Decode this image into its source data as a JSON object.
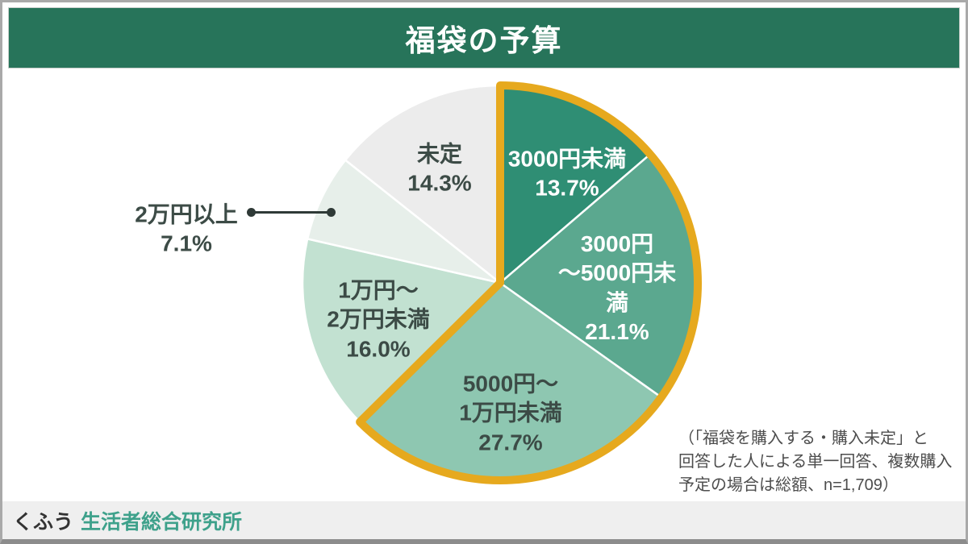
{
  "title": "福袋の予算",
  "chart_data": {
    "type": "pie",
    "title": "福袋の予算",
    "labels": [
      "3000円未満",
      "3000円～5000円未満",
      "5000円～1万円未満",
      "1万円～2万円未満",
      "2万円以上",
      "未定"
    ],
    "values": [
      13.7,
      21.1,
      27.7,
      16.0,
      7.1,
      14.3
    ],
    "unit": "%",
    "colors": [
      "#2f8e74",
      "#5ba88f",
      "#8ec7b1",
      "#c2e1d1",
      "#e7efea",
      "#ececec"
    ],
    "start_angle_deg": 0,
    "direction": "clockwise",
    "highlighted_slices": [
      0,
      1,
      2
    ],
    "highlight_color": "#e6a91e",
    "separator_color": "#ffffff",
    "legend_position": "none",
    "slice_labels": [
      "3000円未満\n13.7%",
      "3000円\n～5000円未\n満\n21.1%",
      "5000円～\n1万円未満\n27.7%",
      "1万円～\n2万円未満\n16.0%",
      "2万円以上\n7.1%",
      "未定\n14.3%"
    ]
  },
  "note": {
    "text": "（「福袋を購入する・購入未定」と\n回答した人による単一回答、複数購入\n予定の場合は総額、n=1,709）"
  },
  "footer": {
    "brand": "くふう",
    "organization": "生活者総合研究所"
  }
}
